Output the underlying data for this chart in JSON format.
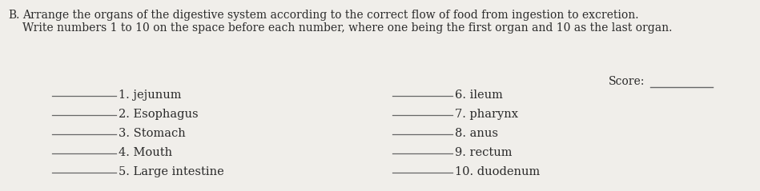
{
  "bg_color": "#f0eeea",
  "title_b": "B.",
  "title_line1": "Arrange the organs of the digestive system according to the correct flow of food from ingestion to excretion.",
  "title_line2": "Write numbers 1 to 10 on the space before each number, where one being the first organ and 10 as the last organ.",
  "score_label": "Score:",
  "left_items": [
    "1. jejunum",
    "2. Esophagus",
    "3. Stomach",
    "4. Mouth",
    "5. Large intestine"
  ],
  "right_items": [
    "6. ileum",
    "7. pharynx",
    "8. anus",
    "9. rectum",
    "10. duodenum"
  ],
  "text_color": "#2a2a2a",
  "line_color": "#666666",
  "font_size_title": 10.0,
  "font_size_items": 10.5,
  "font_size_score": 10.0
}
